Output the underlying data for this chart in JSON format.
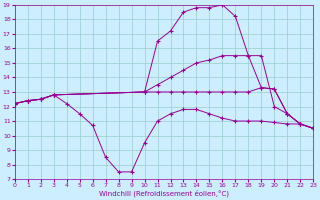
{
  "xlabel": "Windchill (Refroidissement éolien,°C)",
  "bg_color": "#cceeff",
  "line_color": "#990099",
  "grid_color": "#99cccc",
  "ylim": [
    7,
    19
  ],
  "xlim": [
    0,
    23
  ],
  "yticks": [
    7,
    8,
    9,
    10,
    11,
    12,
    13,
    14,
    15,
    16,
    17,
    18,
    19
  ],
  "xticks": [
    0,
    1,
    2,
    3,
    4,
    5,
    6,
    7,
    8,
    9,
    10,
    11,
    12,
    13,
    14,
    15,
    16,
    17,
    18,
    19,
    20,
    21,
    22,
    23
  ],
  "lines": [
    {
      "x": [
        0,
        1,
        2,
        3,
        10,
        11,
        12,
        13,
        14,
        15,
        16,
        17,
        18,
        19,
        20,
        21,
        22,
        23
      ],
      "y": [
        12.2,
        12.4,
        12.5,
        12.8,
        13.0,
        13.5,
        14.0,
        14.5,
        15.0,
        15.2,
        15.5,
        15.5,
        15.5,
        13.3,
        13.2,
        11.5,
        10.8,
        10.5
      ]
    },
    {
      "x": [
        0,
        1,
        2,
        3,
        10,
        11,
        12,
        13,
        14,
        15,
        16,
        17,
        18,
        19,
        20,
        21,
        22,
        23
      ],
      "y": [
        12.2,
        12.4,
        12.5,
        12.8,
        13.0,
        16.5,
        17.2,
        18.5,
        18.8,
        18.8,
        19.0,
        18.2,
        15.5,
        15.5,
        12.0,
        11.5,
        10.8,
        10.5
      ]
    },
    {
      "x": [
        0,
        1,
        2,
        3,
        10,
        11,
        12,
        13,
        14,
        15,
        16,
        17,
        18,
        19,
        20,
        21,
        22,
        23
      ],
      "y": [
        12.2,
        12.4,
        12.5,
        12.8,
        13.0,
        13.0,
        13.0,
        13.0,
        13.0,
        13.0,
        13.0,
        13.0,
        13.0,
        13.3,
        13.2,
        11.5,
        10.8,
        10.5
      ]
    },
    {
      "x": [
        0,
        1,
        2,
        3,
        4,
        5,
        6,
        7,
        8,
        9,
        10,
        11,
        12,
        13,
        14,
        15,
        16,
        17,
        18,
        19,
        20,
        21,
        22,
        23
      ],
      "y": [
        12.2,
        12.4,
        12.5,
        12.8,
        12.2,
        11.5,
        10.7,
        8.5,
        7.5,
        7.5,
        9.5,
        11.0,
        11.5,
        11.8,
        11.8,
        11.5,
        11.2,
        11.0,
        11.0,
        11.0,
        10.9,
        10.8,
        10.8,
        10.5
      ]
    }
  ]
}
